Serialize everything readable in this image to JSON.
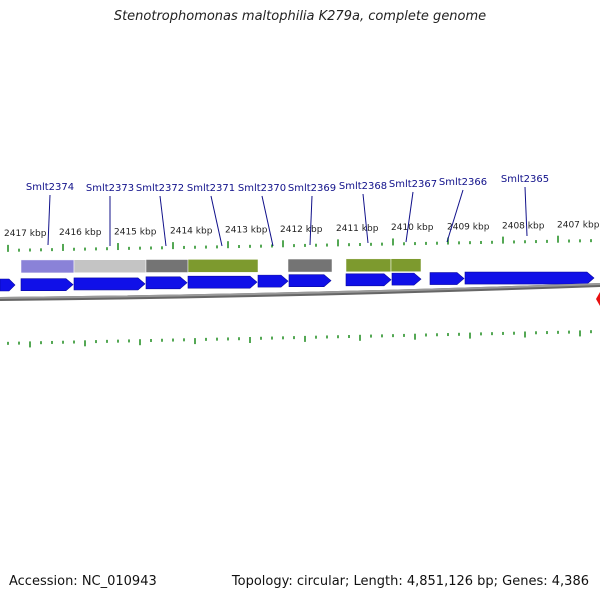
{
  "header": {
    "title": "Stenotrophomonas maltophilia K279a, complete genome"
  },
  "footer": {
    "accession": "Accession: NC_010943",
    "summary": "Topology: circular; Length: 4,851,126 bp; Genes: 4,386"
  },
  "colors": {
    "gene_arrow": "#1010e8",
    "tick": "#1a8a1a",
    "backbone": "#9a9a9a",
    "label": "#10108a",
    "marker": "#e81010"
  },
  "gene_labels": [
    "Smlt2374",
    "Smlt2373",
    "Smlt2372",
    "Smlt2371",
    "Smlt2370",
    "Smlt2369",
    "Smlt2368",
    "Smlt2367",
    "Smlt2366",
    "Smlt2365"
  ],
  "kbp_labels": [
    "2417 kbp",
    "2416 kbp",
    "2415 kbp",
    "2414 kbp",
    "2413 kbp",
    "2412 kbp",
    "2411 kbp",
    "2410 kbp",
    "2409 kbp",
    "2408 kbp",
    "2407 kbp"
  ],
  "feature_colors": [
    "#8a82d8",
    "#c4c4c4",
    "#747474",
    "#7d9a2e",
    "#747474",
    "#7d9a2e",
    "#7d9a2e"
  ]
}
